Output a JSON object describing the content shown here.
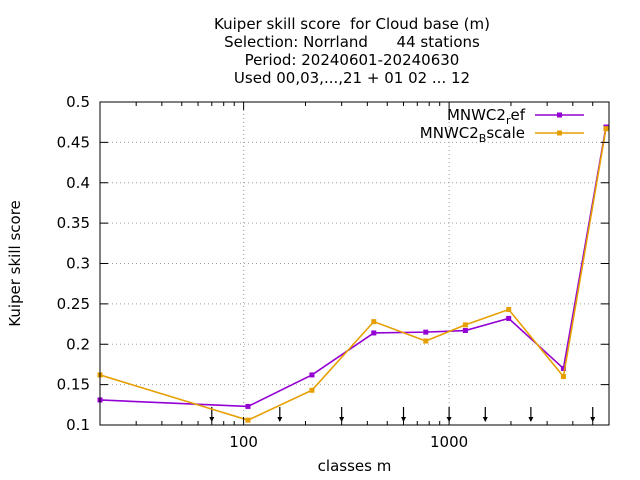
{
  "chart_data": {
    "type": "line",
    "title_lines": [
      "Kuiper skill score  for Cloud base (m)",
      "Selection: Norrland      44 stations",
      "Period: 20240601-20240630",
      "Used 00,03,...,21 + 01 02 ... 12"
    ],
    "xlabel": "classes m",
    "ylabel": "Kuiper skill score",
    "xscale": "log",
    "xlim": [
      20,
      6000
    ],
    "ylim": [
      0.1,
      0.5
    ],
    "x_ticks": [
      100,
      1000
    ],
    "x_tick_labels": [
      "100",
      "1000"
    ],
    "y_ticks": [
      0.1,
      0.15,
      0.2,
      0.25,
      0.3,
      0.35,
      0.4,
      0.45,
      0.5
    ],
    "y_tick_labels": [
      "0.1",
      "0.15",
      "0.2",
      "0.25",
      "0.3",
      "0.35",
      "0.4",
      "0.45",
      "0.5"
    ],
    "grid": true,
    "legend_position": "top-right",
    "x": [
      20,
      105,
      215,
      430,
      770,
      1200,
      1950,
      3600,
      5800
    ],
    "series": [
      {
        "name_base": "MNWC2",
        "name_sub": "r",
        "name_rest": "ef",
        "color": "#9400d3",
        "values": [
          0.131,
          0.123,
          0.162,
          0.214,
          0.215,
          0.217,
          0.232,
          0.17,
          0.469
        ]
      },
      {
        "name_base": "MNWC2",
        "name_sub": "B",
        "name_rest": "scale",
        "color": "#e69f00",
        "values": [
          0.162,
          0.106,
          0.143,
          0.228,
          0.204,
          0.224,
          0.243,
          0.16,
          0.467
        ]
      }
    ],
    "arrow_markers_x": [
      70,
      150,
      300,
      600,
      1000,
      1500,
      2500,
      5000
    ],
    "arrow_color": "#000000"
  }
}
